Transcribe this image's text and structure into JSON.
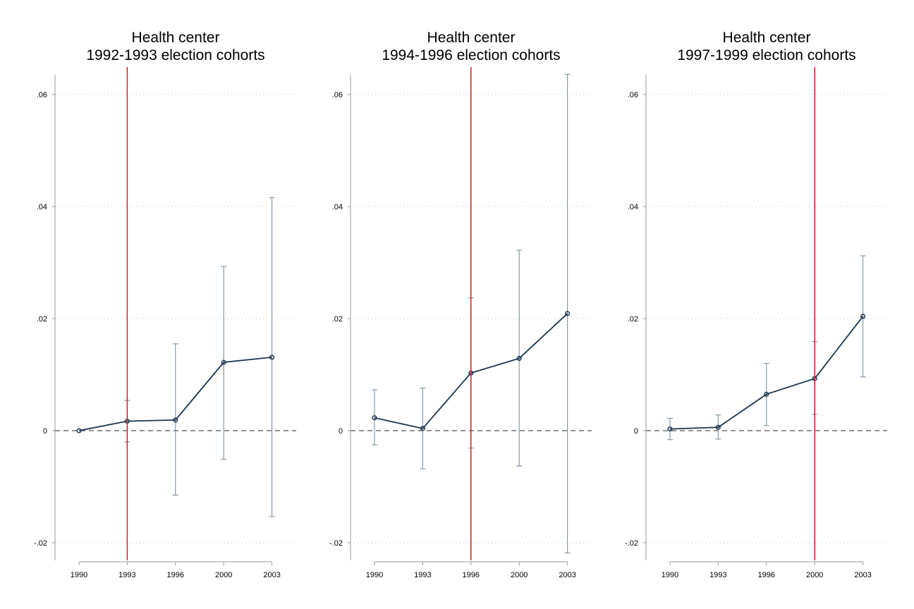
{
  "colors": {
    "series": "#1a3650",
    "ci": "#7a90a6",
    "event": "#d11f1f"
  },
  "chart_data": [
    {
      "type": "line",
      "title_lines": [
        "Health center",
        "1992-1993 election cohorts"
      ],
      "categories": [
        "1990",
        "1993",
        "1996",
        "2000",
        "2003"
      ],
      "event_category": "1993",
      "yticks": [
        "-.02",
        "0",
        ".02",
        ".04",
        ".06"
      ],
      "ytick_values": [
        -0.02,
        0,
        0.02,
        0.04,
        0.06
      ],
      "ylim": [
        -0.023,
        0.0635
      ],
      "grid": "horizontal dotted",
      "reference_line": 0,
      "series": [
        {
          "values": [
            0.0,
            0.0017,
            0.0019,
            0.0122,
            0.0131
          ],
          "ci_low": [
            null,
            -0.002,
            -0.0115,
            -0.0051,
            -0.0153
          ],
          "ci_high": [
            null,
            0.0054,
            0.0155,
            0.0293,
            0.0416
          ]
        }
      ]
    },
    {
      "type": "line",
      "title_lines": [
        "Health center",
        "1994-1996 election cohorts"
      ],
      "categories": [
        "1990",
        "1993",
        "1996",
        "2000",
        "2003"
      ],
      "event_category": "1996",
      "yticks": [
        "-.02",
        "0",
        ".02",
        ".04",
        ".06"
      ],
      "ytick_values": [
        -0.02,
        0,
        0.02,
        0.04,
        0.06
      ],
      "ylim": [
        -0.023,
        0.0635
      ],
      "grid": "horizontal dotted",
      "reference_line": 0,
      "series": [
        {
          "values": [
            0.0023,
            0.0004,
            0.0103,
            0.0129,
            0.0209
          ],
          "ci_low": [
            -0.0025,
            -0.0068,
            -0.0031,
            -0.0063,
            -0.0218
          ],
          "ci_high": [
            0.0073,
            0.0076,
            0.0237,
            0.0322,
            0.0636
          ]
        }
      ]
    },
    {
      "type": "line",
      "title_lines": [
        "Health center",
        "1997-1999 election cohorts"
      ],
      "categories": [
        "1990",
        "1993",
        "1996",
        "2000",
        "2003"
      ],
      "event_category": "2000",
      "yticks": [
        "-.02",
        "0",
        ".02",
        ".04",
        ".06"
      ],
      "ytick_values": [
        -0.02,
        0,
        0.02,
        0.04,
        0.06
      ],
      "ylim": [
        -0.023,
        0.0635
      ],
      "grid": "horizontal dotted",
      "reference_line": 0,
      "series": [
        {
          "values": [
            0.0003,
            0.0006,
            0.0065,
            0.0093,
            0.0204
          ],
          "ci_low": [
            -0.0016,
            -0.0015,
            0.0009,
            0.0029,
            0.0096
          ],
          "ci_high": [
            0.0022,
            0.0028,
            0.012,
            0.0159,
            0.0312
          ]
        }
      ]
    }
  ]
}
